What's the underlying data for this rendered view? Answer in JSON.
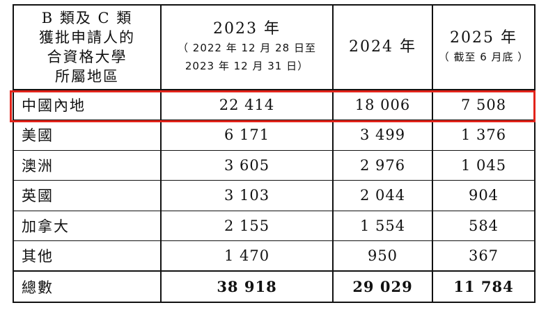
{
  "header": {
    "col1_lines": [
      "B 類及 C 類",
      "獲批申請人的",
      "合資格大學",
      "所屬地區"
    ],
    "col2_year": "2023 年",
    "col2_note_line1": "（ 2022 年 12 月 28 日至",
    "col2_note_line2": "2023 年 12 月 31 日）",
    "col3_year": "2024 年",
    "col4_year": "2025 年",
    "col4_note": "（ 截至 6 月底 ）"
  },
  "rows": [
    {
      "region": "中國內地",
      "y2023": "22 414",
      "y2024": "18 006",
      "y2025": "7 508"
    },
    {
      "region": "美國",
      "y2023": "6 171",
      "y2024": "3 499",
      "y2025": "1 376"
    },
    {
      "region": "澳洲",
      "y2023": "3 605",
      "y2024": "2 976",
      "y2025": "1 045"
    },
    {
      "region": "英國",
      "y2023": "3 103",
      "y2024": "2 044",
      "y2025": "904"
    },
    {
      "region": "加拿大",
      "y2023": "2 155",
      "y2024": "1 554",
      "y2025": "584"
    },
    {
      "region": "其他",
      "y2023": "1 470",
      "y2024": "950",
      "y2025": "367"
    }
  ],
  "total": {
    "label": "總數",
    "y2023": "38 918",
    "y2024": "29 029",
    "y2025": "11 784"
  },
  "colors": {
    "highlight": "#e2231a",
    "border": "#111111"
  }
}
